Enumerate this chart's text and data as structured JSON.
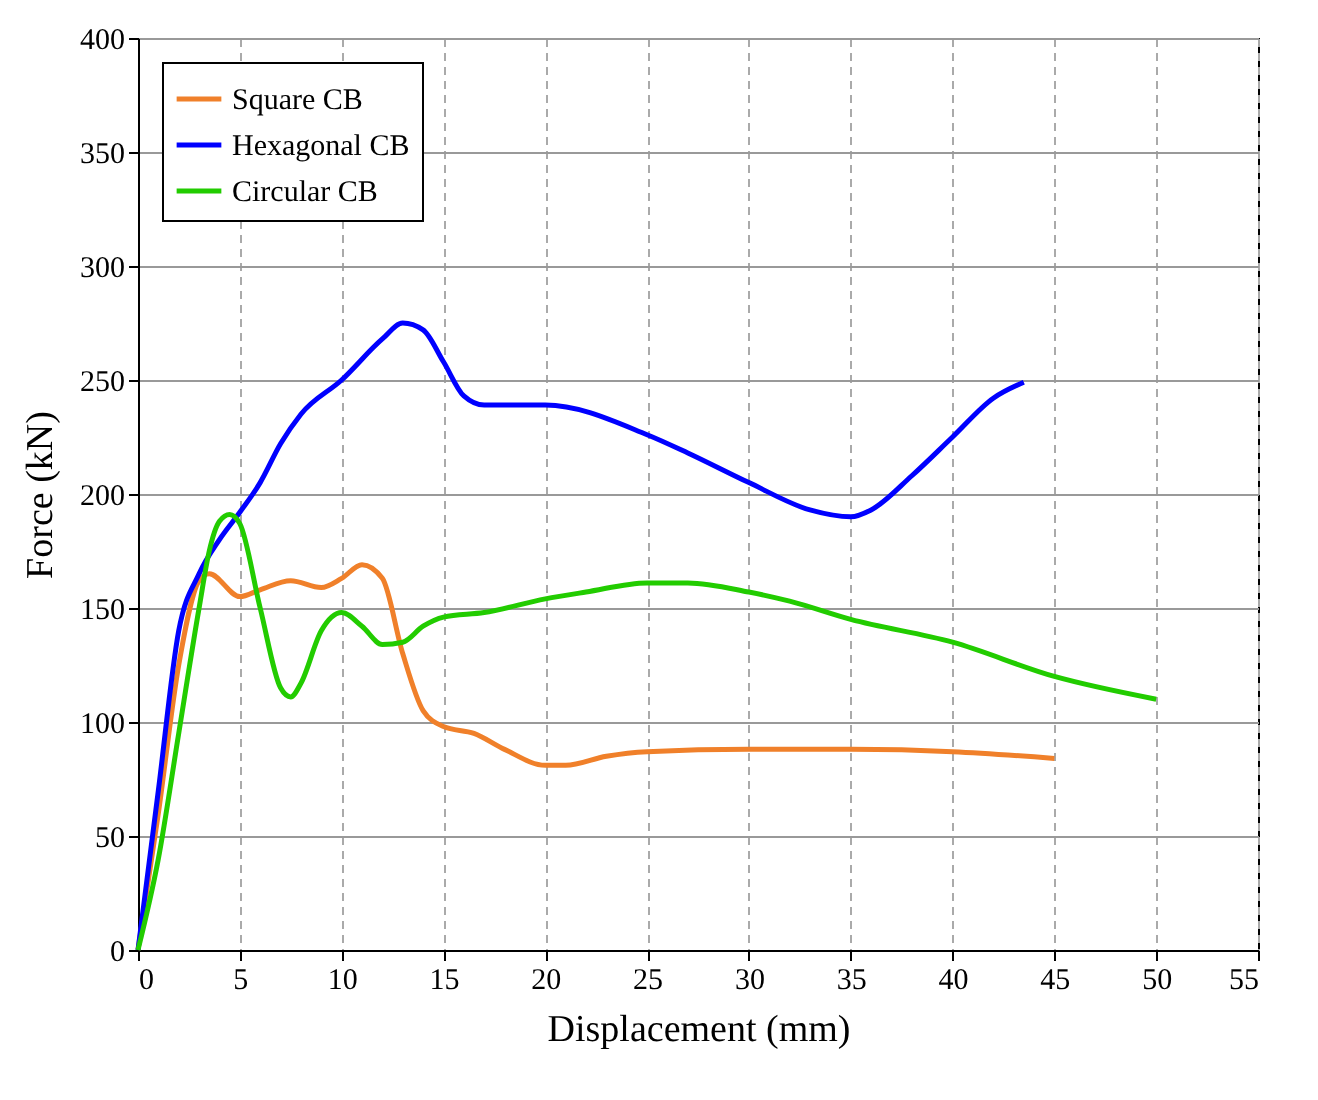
{
  "chart_data": {
    "type": "line",
    "xlabel": "Displacement (mm)",
    "ylabel": "Force (kN)",
    "xlim": [
      0,
      55
    ],
    "xticks": [
      0,
      5,
      10,
      15,
      20,
      25,
      30,
      35,
      40,
      45,
      50,
      55
    ],
    "ylim": [
      0,
      400
    ],
    "yticks": [
      0,
      50,
      100,
      150,
      200,
      250,
      300,
      350,
      400
    ],
    "grid": true,
    "legend": "top left",
    "marker": "none",
    "line_style": "solid",
    "series": [
      {
        "name": "Square CB",
        "color": "#f0802a",
        "x": [
          0,
          1,
          2,
          3,
          3.5,
          5,
          6,
          7.5,
          9,
          10,
          11,
          12,
          13,
          14,
          15,
          16.5,
          18,
          20,
          21,
          23,
          25,
          30,
          35,
          40,
          45
        ],
        "values": [
          0,
          60,
          125,
          162,
          165,
          155,
          158,
          162,
          159,
          163,
          169,
          163,
          130,
          105,
          98,
          95,
          88,
          81,
          81,
          85,
          87,
          88,
          88,
          87,
          84
        ]
      },
      {
        "name": "Hexagonal CB",
        "color": "#0000ff",
        "x": [
          0,
          1,
          2,
          3,
          4,
          5,
          6,
          7,
          8,
          10,
          12,
          13,
          14,
          15,
          16,
          17,
          18,
          20,
          25,
          27,
          30,
          33,
          35,
          36,
          38,
          40,
          42,
          43.5
        ],
        "values": [
          0,
          70,
          140,
          165,
          180,
          192,
          205,
          222,
          235,
          250,
          268,
          275,
          272,
          258,
          243,
          239,
          239,
          239,
          226,
          218,
          205,
          193,
          190,
          193,
          208,
          225,
          242,
          249
        ]
      },
      {
        "name": "Circular CB",
        "color": "#22cc00",
        "x": [
          0,
          1,
          2,
          3,
          3.5,
          4,
          4.5,
          5,
          6,
          7,
          7.5,
          8,
          9,
          10,
          11,
          12,
          13,
          14,
          15,
          17,
          20,
          22,
          25,
          27,
          30,
          32,
          35,
          40,
          45,
          50
        ],
        "values": [
          0,
          40,
          95,
          150,
          175,
          188,
          191,
          187,
          150,
          115,
          111,
          117,
          140,
          148,
          142,
          134,
          135,
          142,
          146,
          148,
          154,
          157,
          161,
          161,
          157,
          153,
          145,
          135,
          120,
          110
        ]
      }
    ]
  }
}
